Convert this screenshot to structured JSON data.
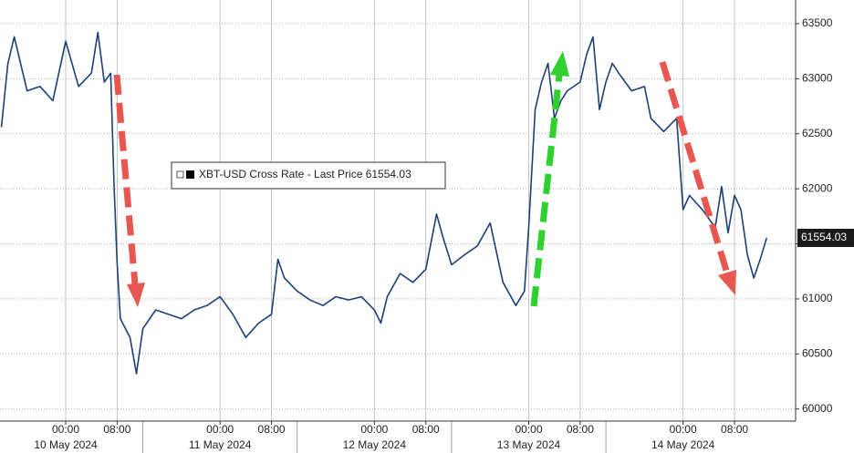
{
  "chart_data": {
    "type": "line",
    "legend_text": "XBT-USD Cross Rate - Last Price 61554.03",
    "last_label": "61554.03",
    "x": [
      "2024-05-09 14:00",
      "2024-05-09 15:00",
      "2024-05-09 16:00",
      "2024-05-09 18:00",
      "2024-05-09 20:00",
      "2024-05-09 22:00",
      "2024-05-10 00:00",
      "2024-05-10 02:00",
      "2024-05-10 04:00",
      "2024-05-10 05:00",
      "2024-05-10 06:00",
      "2024-05-10 07:00",
      "2024-05-10 07:30",
      "2024-05-10 08:00",
      "2024-05-10 08:30",
      "2024-05-10 10:00",
      "2024-05-10 11:00",
      "2024-05-10 12:00",
      "2024-05-10 14:00",
      "2024-05-10 16:00",
      "2024-05-10 18:00",
      "2024-05-10 20:00",
      "2024-05-10 22:00",
      "2024-05-11 00:00",
      "2024-05-11 02:00",
      "2024-05-11 04:00",
      "2024-05-11 06:00",
      "2024-05-11 08:00",
      "2024-05-11 09:00",
      "2024-05-11 10:00",
      "2024-05-11 12:00",
      "2024-05-11 14:00",
      "2024-05-11 16:00",
      "2024-05-11 18:00",
      "2024-05-11 20:00",
      "2024-05-11 22:00",
      "2024-05-12 00:00",
      "2024-05-12 01:00",
      "2024-05-12 02:00",
      "2024-05-12 04:00",
      "2024-05-12 06:00",
      "2024-05-12 08:00",
      "2024-05-12 09:40",
      "2024-05-12 10:40",
      "2024-05-12 12:00",
      "2024-05-12 14:00",
      "2024-05-12 16:00",
      "2024-05-12 18:00",
      "2024-05-12 20:00",
      "2024-05-12 22:00",
      "2024-05-12 23:20",
      "2024-05-13 00:00",
      "2024-05-13 01:00",
      "2024-05-13 02:00",
      "2024-05-13 03:00",
      "2024-05-13 04:00",
      "2024-05-13 05:00",
      "2024-05-13 06:00",
      "2024-05-13 08:00",
      "2024-05-13 09:00",
      "2024-05-13 10:00",
      "2024-05-13 11:00",
      "2024-05-13 12:00",
      "2024-05-13 13:00",
      "2024-05-13 14:00",
      "2024-05-13 16:00",
      "2024-05-13 18:00",
      "2024-05-13 19:00",
      "2024-05-13 21:00",
      "2024-05-13 23:00",
      "2024-05-14 00:00",
      "2024-05-14 01:00",
      "2024-05-14 03:00",
      "2024-05-14 05:00",
      "2024-05-14 06:00",
      "2024-05-14 07:00",
      "2024-05-14 08:00",
      "2024-05-14 09:00",
      "2024-05-14 10:00",
      "2024-05-14 11:00",
      "2024-05-14 12:00",
      "2024-05-14 13:00"
    ],
    "series": [
      {
        "name": "XBT-USD Cross Rate - Last Price",
        "color": "#1d3f78",
        "values": [
          62560,
          63135,
          63380,
          62890,
          62930,
          62800,
          63340,
          62930,
          63050,
          63420,
          62970,
          63050,
          62060,
          61320,
          60820,
          60650,
          60320,
          60730,
          60900,
          60860,
          60820,
          60900,
          60940,
          61020,
          60860,
          60650,
          60780,
          60860,
          61360,
          61190,
          61070,
          60990,
          60940,
          61020,
          60990,
          61020,
          60900,
          60780,
          61020,
          61230,
          61150,
          61270,
          61770,
          61560,
          61310,
          61400,
          61480,
          61690,
          61150,
          60940,
          61070,
          61650,
          62720,
          62970,
          63140,
          62640,
          62800,
          62890,
          62970,
          63220,
          63380,
          62720,
          62970,
          63140,
          63050,
          62890,
          62930,
          62640,
          62520,
          62640,
          61810,
          61940,
          61810,
          61650,
          62020,
          61600,
          61940,
          61810,
          61400,
          61190,
          61360,
          61554.03
        ]
      }
    ],
    "xlim": [
      "2024-05-09 13:47",
      "2024-05-14 17:30"
    ],
    "xticks": [
      {
        "value": "2024-05-10 00:00",
        "label": "00:00"
      },
      {
        "value": "2024-05-10 08:00",
        "label": "08:00"
      },
      {
        "value": "2024-05-11 00:00",
        "label": "00:00"
      },
      {
        "value": "2024-05-11 08:00",
        "label": "08:00"
      },
      {
        "value": "2024-05-12 00:00",
        "label": "00:00"
      },
      {
        "value": "2024-05-12 08:00",
        "label": "08:00"
      },
      {
        "value": "2024-05-13 00:00",
        "label": "00:00"
      },
      {
        "value": "2024-05-13 08:00",
        "label": "08:00"
      },
      {
        "value": "2024-05-14 00:00",
        "label": "00:00"
      },
      {
        "value": "2024-05-14 08:00",
        "label": "08:00"
      }
    ],
    "xday_ticks": [
      {
        "value": "2024-05-10 00:00",
        "label": "10 May 2024"
      },
      {
        "value": "2024-05-11 00:00",
        "label": "11 May 2024"
      },
      {
        "value": "2024-05-12 00:00",
        "label": "12 May 2024"
      },
      {
        "value": "2024-05-13 00:00",
        "label": "13 May 2024"
      },
      {
        "value": "2024-05-14 00:00",
        "label": "14 May 2024"
      }
    ],
    "ylim": [
      59890,
      63715
    ],
    "yticks": [
      60000,
      60500,
      61000,
      61500,
      62000,
      62500,
      63000,
      63500
    ],
    "grid": true
  }
}
